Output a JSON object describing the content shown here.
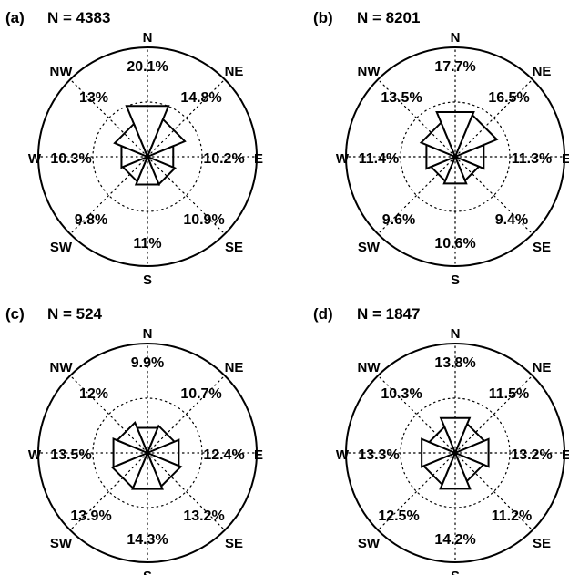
{
  "chart_data": [
    {
      "type": "rose",
      "panel_label": "(a)",
      "title": "N = 4383",
      "directions": [
        "N",
        "NE",
        "E",
        "SE",
        "S",
        "SW",
        "W",
        "NW"
      ],
      "values": [
        20.1,
        14.8,
        10.2,
        10.9,
        11,
        9.8,
        10.3,
        13
      ],
      "value_labels": [
        "20.1%",
        "14.8%",
        "10.2%",
        "10.9%",
        "11%",
        "9.8%",
        "10.3%",
        "13%"
      ],
      "rmax": 40
    },
    {
      "type": "rose",
      "panel_label": "(b)",
      "title": "N = 8201",
      "directions": [
        "N",
        "NE",
        "E",
        "SE",
        "S",
        "SW",
        "W",
        "NW"
      ],
      "values": [
        17.7,
        16.5,
        11.3,
        9.4,
        10.6,
        9.6,
        11.4,
        13.5
      ],
      "value_labels": [
        "17.7%",
        "16.5%",
        "11.3%",
        "9.4%",
        "10.6%",
        "9.6%",
        "11.4%",
        "13.5%"
      ],
      "rmax": 40
    },
    {
      "type": "rose",
      "panel_label": "(c)",
      "title": "N = 524",
      "directions": [
        "N",
        "NE",
        "E",
        "SE",
        "S",
        "SW",
        "W",
        "NW"
      ],
      "values": [
        9.9,
        10.7,
        12.4,
        13.2,
        14.3,
        13.9,
        13.5,
        12
      ],
      "value_labels": [
        "9.9%",
        "10.7%",
        "12.4%",
        "13.2%",
        "14.3%",
        "13.9%",
        "13.5%",
        "12%"
      ],
      "rmax": 40
    },
    {
      "type": "rose",
      "panel_label": "(d)",
      "title": "N = 1847",
      "directions": [
        "N",
        "NE",
        "E",
        "SE",
        "S",
        "SW",
        "W",
        "NW"
      ],
      "values": [
        13.8,
        11.5,
        13.2,
        11.2,
        14.2,
        12.5,
        13.3,
        10.3
      ],
      "value_labels": [
        "13.8%",
        "11.5%",
        "13.2%",
        "11.2%",
        "14.2%",
        "12.5%",
        "13.3%",
        "10.3%"
      ],
      "rmax": 40
    }
  ]
}
